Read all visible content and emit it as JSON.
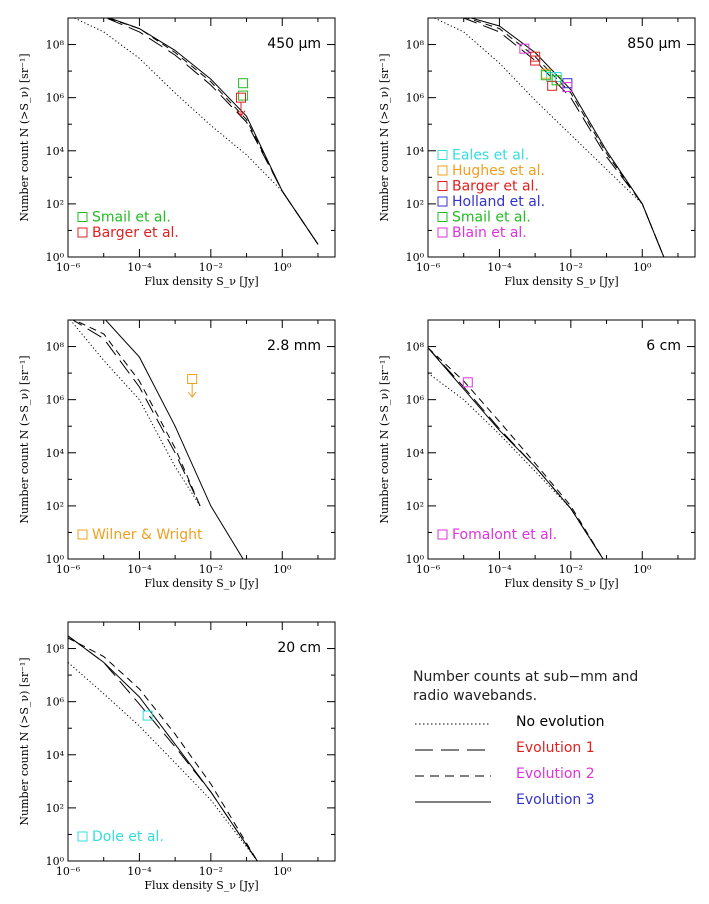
{
  "chart_data": [
    {
      "type": "line",
      "band": "450 μm",
      "xlabel": "Flux density S_ν [Jy]",
      "ylabel": "Number count N (>S_ν) [sr⁻¹]",
      "xscale": "log",
      "yscale": "log",
      "xlim": [
        1e-06,
        30
      ],
      "ylim": [
        1,
        1000000000.0
      ],
      "xticks": [
        "10⁻⁶",
        "10⁻⁴",
        "10⁻²",
        "10⁰"
      ],
      "yticks": [
        "10⁰",
        "10²",
        "10⁴",
        "10⁶",
        "10⁸"
      ],
      "series": [
        {
          "style": "dotted",
          "x": [
            1e-06,
            1e-05,
            0.0001,
            0.001,
            0.01,
            0.1,
            1,
            10
          ],
          "y": [
            1300000000.0,
            300000000.0,
            30000000.0,
            1500000.0,
            90000.0,
            7000.0,
            300.0,
            3
          ]
        },
        {
          "style": "long-dash",
          "x": [
            3e-06,
            1e-05,
            0.0001,
            0.001,
            0.01,
            0.1,
            1,
            10
          ],
          "y": [
            1300000000.0,
            1100000000.0,
            300000000.0,
            40000000.0,
            3000000.0,
            120000.0,
            300.0,
            3
          ]
        },
        {
          "style": "short-dash",
          "x": [
            3e-06,
            1e-05,
            0.0001,
            0.001,
            0.01,
            0.1,
            1,
            10
          ],
          "y": [
            1300000000.0,
            1100000000.0,
            400000000.0,
            50000000.0,
            4000000.0,
            150000.0,
            300.0,
            3
          ]
        },
        {
          "style": "solid",
          "x": [
            3e-06,
            1e-05,
            0.0001,
            0.001,
            0.01,
            0.1,
            1,
            10
          ],
          "y": [
            1400000000.0,
            1200000000.0,
            400000000.0,
            60000000.0,
            5000000.0,
            200000.0,
            300.0,
            3
          ]
        }
      ],
      "observations": [
        {
          "name": "Smail et al.",
          "color": "#22bb22",
          "points": [
            {
              "x": 0.08,
              "y": 3500000.0
            },
            {
              "x": 0.08,
              "y": 1200000.0
            }
          ]
        },
        {
          "name": "Barger et al.",
          "color": "#e02020",
          "points": [
            {
              "x": 0.07,
              "y": 1000000.0,
              "upper_limit": true
            }
          ]
        }
      ],
      "legend": [
        {
          "label": "Smail et al.",
          "color": "#22bb22"
        },
        {
          "label": "Barger et al.",
          "color": "#e02020"
        }
      ]
    },
    {
      "type": "line",
      "band": "850 μm",
      "xlabel": "Flux density S_ν [Jy]",
      "ylabel": "Number count N (>S_ν) [sr⁻¹]",
      "xscale": "log",
      "yscale": "log",
      "xlim": [
        1e-06,
        30
      ],
      "ylim": [
        1,
        1000000000.0
      ],
      "xticks": [
        "10⁻⁶",
        "10⁻⁴",
        "10⁻²",
        "10⁰"
      ],
      "yticks": [
        "10⁰",
        "10²",
        "10⁴",
        "10⁶",
        "10⁸"
      ],
      "series": [
        {
          "style": "dotted",
          "x": [
            1e-06,
            1e-05,
            0.0001,
            0.001,
            0.01,
            0.1,
            1,
            4
          ],
          "y": [
            1300000000.0,
            300000000.0,
            20000000.0,
            800000.0,
            40000.0,
            2000.0,
            100.0,
            1
          ]
        },
        {
          "style": "long-dash",
          "x": [
            2e-06,
            1e-05,
            0.0001,
            0.001,
            0.01,
            0.1,
            1,
            4
          ],
          "y": [
            1300000000.0,
            1000000000.0,
            300000000.0,
            25000000.0,
            1000000.0,
            6000.0,
            100.0,
            1
          ]
        },
        {
          "style": "short-dash",
          "x": [
            2e-06,
            1e-05,
            0.0001,
            0.001,
            0.01,
            0.1,
            1,
            4
          ],
          "y": [
            1300000000.0,
            1100000000.0,
            400000000.0,
            35000000.0,
            1500000.0,
            8000.0,
            100.0,
            1
          ]
        },
        {
          "style": "solid",
          "x": [
            2e-06,
            1e-05,
            0.0001,
            0.001,
            0.01,
            0.1,
            1,
            4
          ],
          "y": [
            1400000000.0,
            1200000000.0,
            500000000.0,
            50000000.0,
            2000000.0,
            10000.0,
            100.0,
            1
          ]
        }
      ],
      "observations": [
        {
          "name": "Eales et al.",
          "color": "#33dddd",
          "points": [
            {
              "x": 0.0028,
              "y": 6000000.0
            },
            {
              "x": 0.004,
              "y": 6000000.0
            }
          ]
        },
        {
          "name": "Hughes et al.",
          "color": "#f0a020",
          "points": [
            {
              "x": 0.002,
              "y": 8000000.0
            }
          ]
        },
        {
          "name": "Barger et al.",
          "color": "#e02020",
          "points": [
            {
              "x": 0.001,
              "y": 35000000.0
            },
            {
              "x": 0.001,
              "y": 25000000.0
            },
            {
              "x": 0.003,
              "y": 2800000.0
            }
          ]
        },
        {
          "name": "Holland et al.",
          "color": "#3333cc",
          "points": [
            {
              "x": 0.008,
              "y": 3500000.0
            }
          ]
        },
        {
          "name": "Smail et al.",
          "color": "#22bb22",
          "points": [
            {
              "x": 0.002,
              "y": 7000000.0
            },
            {
              "x": 0.004,
              "y": 4500000.0
            }
          ]
        },
        {
          "name": "Blain et al.",
          "color": "#dd33dd",
          "points": [
            {
              "x": 0.0005,
              "y": 70000000.0
            },
            {
              "x": 0.008,
              "y": 2500000.0
            }
          ]
        }
      ],
      "legend": [
        {
          "label": "Eales et al.",
          "color": "#33dddd"
        },
        {
          "label": "Hughes et al.",
          "color": "#f0a020"
        },
        {
          "label": "Barger et al.",
          "color": "#e02020"
        },
        {
          "label": "Holland et al.",
          "color": "#3333cc"
        },
        {
          "label": "Smail et al.",
          "color": "#22bb22"
        },
        {
          "label": "Blain et al.",
          "color": "#dd33dd"
        }
      ]
    },
    {
      "type": "line",
      "band": "2.8 mm",
      "xlabel": "Flux density S_ν [Jy]",
      "ylabel": "Number count N (>S_ν) [sr⁻¹]",
      "xscale": "log",
      "yscale": "log",
      "xlim": [
        1e-06,
        30
      ],
      "ylim": [
        1,
        1000000000.0
      ],
      "xticks": [
        "10⁻⁶",
        "10⁻⁴",
        "10⁻²",
        "10⁰"
      ],
      "yticks": [
        "10⁰",
        "10²",
        "10⁴",
        "10⁶",
        "10⁸"
      ],
      "series": [
        {
          "style": "dotted",
          "x": [
            1e-06,
            1e-05,
            0.0001,
            0.001,
            0.005
          ],
          "y": [
            1300000000.0,
            30000000.0,
            1000000.0,
            3000.0,
            100.0
          ]
        },
        {
          "style": "long-dash",
          "x": [
            1e-06,
            1e-05,
            0.0001,
            0.001,
            0.005
          ],
          "y": [
            1300000000.0,
            200000000.0,
            3000000.0,
            10000.0,
            100.0
          ]
        },
        {
          "style": "short-dash",
          "x": [
            1e-06,
            1e-05,
            0.0001,
            0.001,
            0.005
          ],
          "y": [
            1300000000.0,
            300000000.0,
            5000000.0,
            15000.0,
            100.0
          ]
        },
        {
          "style": "solid",
          "x": [
            1.5e-06,
            1e-05,
            0.0001,
            0.001,
            0.01,
            0.08
          ],
          "y": [
            1400000000.0,
            1200000000.0,
            40000000.0,
            100000.0,
            100.0,
            1
          ]
        }
      ],
      "observations": [
        {
          "name": "Wilner & Wright",
          "color": "#f0a020",
          "points": [
            {
              "x": 0.003,
              "y": 6000000.0,
              "upper_limit": true
            }
          ]
        }
      ],
      "legend": [
        {
          "label": "Wilner & Wright",
          "color": "#f0a020"
        }
      ]
    },
    {
      "type": "line",
      "band": "6 cm",
      "xlabel": "Flux density S_ν [Jy]",
      "ylabel": "Number count N (>S_ν) [sr⁻¹]",
      "xscale": "log",
      "yscale": "log",
      "xlim": [
        1e-06,
        30
      ],
      "ylim": [
        1,
        1000000000.0
      ],
      "xticks": [
        "10⁻⁶",
        "10⁻⁴",
        "10⁻²",
        "10⁰"
      ],
      "yticks": [
        "10⁰",
        "10²",
        "10⁴",
        "10⁶",
        "10⁸"
      ],
      "series": [
        {
          "style": "dotted",
          "x": [
            1e-06,
            1e-05,
            0.0001,
            0.001,
            0.01,
            0.08
          ],
          "y": [
            10000000.0,
            1000000.0,
            50000.0,
            2000.0,
            80,
            1
          ]
        },
        {
          "style": "long-dash",
          "x": [
            1e-06,
            1e-05,
            0.0001,
            0.001,
            0.01,
            0.08
          ],
          "y": [
            90000000.0,
            3000000.0,
            80000.0,
            3000.0,
            80,
            1
          ]
        },
        {
          "style": "short-dash",
          "x": [
            1e-06,
            1e-05,
            0.0001,
            0.001,
            0.01,
            0.08
          ],
          "y": [
            90000000.0,
            5000000.0,
            150000.0,
            4000.0,
            100,
            1
          ]
        },
        {
          "style": "solid",
          "x": [
            1e-06,
            1e-05,
            0.0001,
            0.001,
            0.01,
            0.08
          ],
          "y": [
            90000000.0,
            2500000.0,
            70000.0,
            3000.0,
            80,
            1
          ]
        }
      ],
      "observations": [
        {
          "name": "Fomalont et al.",
          "color": "#dd33dd",
          "points": [
            {
              "x": 1.3e-05,
              "y": 4500000.0
            }
          ]
        }
      ],
      "legend": [
        {
          "label": "Fomalont et al.",
          "color": "#dd33dd"
        }
      ]
    },
    {
      "type": "line",
      "band": "20 cm",
      "xlabel": "Flux density S_ν [Jy]",
      "ylabel": "Number count N (>S_ν) [sr⁻¹]",
      "xscale": "log",
      "yscale": "log",
      "xlim": [
        1e-06,
        30
      ],
      "ylim": [
        1,
        1000000000.0
      ],
      "xticks": [
        "10⁻⁶",
        "10⁻⁴",
        "10⁻²",
        "10⁰"
      ],
      "yticks": [
        "10⁰",
        "10²",
        "10⁴",
        "10⁶",
        "10⁸"
      ],
      "series": [
        {
          "style": "dotted",
          "x": [
            1e-06,
            1e-05,
            0.0001,
            0.001,
            0.01,
            0.2
          ],
          "y": [
            30000000.0,
            2000000.0,
            120000.0,
            5000.0,
            200.0,
            1
          ]
        },
        {
          "style": "long-dash",
          "x": [
            1e-06,
            1e-05,
            0.0001,
            0.001,
            0.01,
            0.2
          ],
          "y": [
            300000000.0,
            30000000.0,
            800000.0,
            20000.0,
            400.0,
            1
          ]
        },
        {
          "style": "short-dash",
          "x": [
            1e-06,
            1e-05,
            0.0001,
            0.001,
            0.01,
            0.2
          ],
          "y": [
            250000000.0,
            50000000.0,
            3000000.0,
            60000.0,
            800.0,
            1
          ]
        },
        {
          "style": "solid",
          "x": [
            1e-06,
            1e-05,
            0.0001,
            0.001,
            0.01,
            0.2
          ],
          "y": [
            300000000.0,
            30000000.0,
            1500000.0,
            25000.0,
            400.0,
            1
          ]
        }
      ],
      "observations": [
        {
          "name": "Dole et al.",
          "color": "#33dddd",
          "points": [
            {
              "x": 0.00017,
              "y": 300000.0
            }
          ]
        }
      ],
      "legend": [
        {
          "label": "Dole et al.",
          "color": "#33dddd"
        }
      ]
    }
  ],
  "legend_panel": {
    "title_line1": "Number counts at sub−mm and",
    "title_line2": "radio wavebands.",
    "items": [
      {
        "label": "No evolution",
        "style": "dotted",
        "color": "#000000"
      },
      {
        "label": "Evolution 1",
        "style": "long-dash",
        "color": "#e02020"
      },
      {
        "label": "Evolution 2",
        "style": "short-dash",
        "color": "#dd33dd"
      },
      {
        "label": "Evolution 3",
        "style": "solid",
        "color": "#3333cc"
      }
    ]
  }
}
